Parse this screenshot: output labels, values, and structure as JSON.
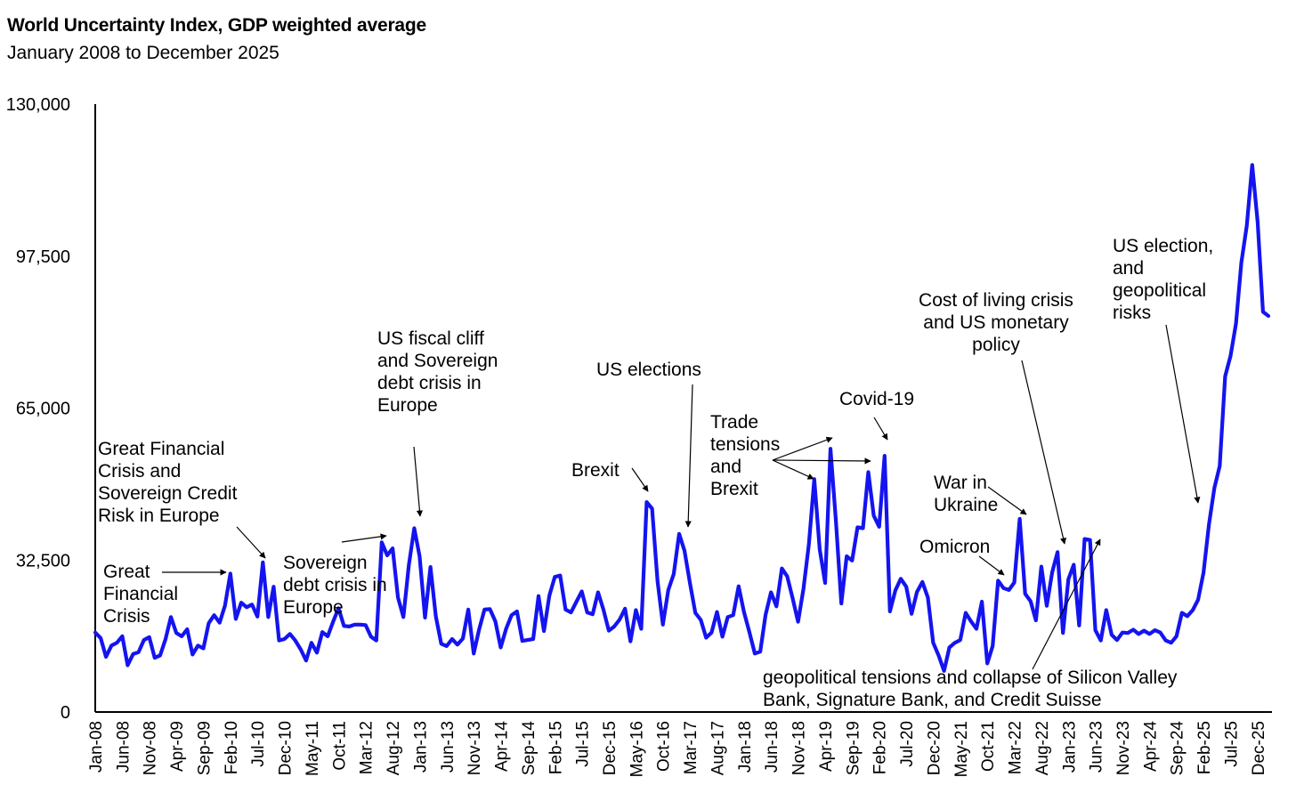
{
  "chart_data": {
    "type": "line",
    "title": "World Uncertainty Index, GDP weighted average",
    "subtitle": "January 2008 to December 2025",
    "xlabel": "",
    "ylabel": "",
    "ylim": [
      0,
      130000
    ],
    "yticks": [
      "0",
      "32,500",
      "65,000",
      "97,500",
      "130,000"
    ],
    "yvalues": [
      0,
      32500,
      65000,
      97500,
      130000
    ],
    "x_tick_labels": [
      "Jan-08",
      "Jun-08",
      "Nov-08",
      "Apr-09",
      "Sep-09",
      "Feb-10",
      "Jul-10",
      "Dec-10",
      "May-11",
      "Oct-11",
      "Mar-12",
      "Aug-12",
      "Jan-13",
      "Jun-13",
      "Nov-13",
      "Apr-14",
      "Sep-14",
      "Feb-15",
      "Jul-15",
      "Dec-15",
      "May-16",
      "Oct-16",
      "Mar-17",
      "Aug-17",
      "Jan-18",
      "Jun-18",
      "Nov-18",
      "Apr-19",
      "Sep-19",
      "Feb-20",
      "Jul-20",
      "Dec-20",
      "May-21",
      "Oct-21",
      "Mar-22",
      "Aug-22",
      "Jan-23",
      "Jun-23",
      "Nov-23",
      "Apr-24",
      "Sep-24",
      "Feb-25",
      "Jul-25",
      "Dec-25"
    ],
    "series": [
      {
        "name": "World Uncertainty Index, GDP weighted average",
        "color": "#1414f0",
        "values": [
          17000,
          15800,
          11800,
          14200,
          14800,
          16200,
          10000,
          12400,
          12800,
          15400,
          16000,
          11600,
          12100,
          15600,
          20300,
          16900,
          16200,
          17700,
          12300,
          14200,
          13600,
          19000,
          20700,
          19100,
          22800,
          29600,
          19900,
          23400,
          22400,
          23000,
          20400,
          32000,
          20300,
          26800,
          15300,
          15600,
          16700,
          15300,
          13400,
          11000,
          14800,
          12700,
          17100,
          16200,
          19300,
          22200,
          18400,
          18300,
          18700,
          18700,
          18600,
          16100,
          15300,
          36300,
          33500,
          35000,
          24500,
          20300,
          31400,
          39300,
          33300,
          20200,
          31000,
          20500,
          14600,
          14100,
          15600,
          14400,
          15700,
          21900,
          12500,
          17600,
          21900,
          22000,
          19400,
          13800,
          17800,
          20700,
          21500,
          15200,
          15400,
          15600,
          24800,
          17300,
          24900,
          28900,
          29200,
          21900,
          21300,
          23600,
          25800,
          21300,
          20900,
          25600,
          21900,
          17400,
          18300,
          19800,
          22100,
          15100,
          21800,
          17800,
          44900,
          43500,
          28000,
          18700,
          26100,
          29500,
          38100,
          34500,
          27600,
          21200,
          19700,
          15900,
          17000,
          21400,
          16100,
          20300,
          20700,
          26900,
          21400,
          17100,
          12500,
          12900,
          20800,
          25600,
          22600,
          30700,
          29000,
          24300,
          19300,
          26400,
          35800,
          49800,
          34800,
          27600,
          56300,
          40900,
          23200,
          33300,
          32400,
          39500,
          39300,
          51300,
          42000,
          39600,
          54800,
          21500,
          26000,
          28500,
          26800,
          21000,
          25700,
          27800,
          24500,
          14800,
          12100,
          8800,
          13800,
          14800,
          15400,
          21200,
          19400,
          17800,
          23600,
          10400,
          14100,
          28100,
          26500,
          26100,
          27700,
          41300,
          25300,
          23700,
          19600,
          31100,
          22700,
          29900,
          34200,
          16900,
          28400,
          31500,
          18500,
          37000,
          36800,
          17500,
          15300,
          21800,
          16500,
          15400,
          17000,
          16900,
          17600,
          16700,
          17400,
          16700,
          17500,
          17000,
          15300,
          14800,
          16200,
          21200,
          20500,
          21800,
          24000,
          29800,
          40100,
          47900,
          52600,
          71800,
          76200,
          83100,
          96100,
          104000,
          117000,
          104800,
          85600,
          84700
        ]
      }
    ],
    "annotations": [
      {
        "text": [
          "Great",
          "Financial",
          "Crisis"
        ]
      },
      {
        "text": [
          "Great Financial",
          "Crisis and",
          "Sovereign Credit",
          "Risk in Europe"
        ]
      },
      {
        "text": [
          "Sovereign",
          "debt crisis in",
          "Europe"
        ]
      },
      {
        "text": [
          "US fiscal cliff",
          "and Sovereign",
          "debt crisis in",
          "Europe"
        ]
      },
      {
        "text": [
          "Brexit"
        ]
      },
      {
        "text": [
          "US elections"
        ]
      },
      {
        "text": [
          "Trade",
          "tensions",
          "and",
          "Brexit"
        ]
      },
      {
        "text": [
          "Covid-19"
        ]
      },
      {
        "text": [
          "War in",
          "Ukraine"
        ]
      },
      {
        "text": [
          "Omicron"
        ]
      },
      {
        "text": [
          "Cost of living crisis",
          "and US monetary",
          "policy"
        ]
      },
      {
        "text": [
          "geopolitical tensions and collapse of Silicon Valley",
          "Bank, Signature Bank, and Credit Suisse"
        ]
      },
      {
        "text": [
          "US election,",
          "and",
          "geopolitical",
          "risks"
        ]
      }
    ]
  }
}
